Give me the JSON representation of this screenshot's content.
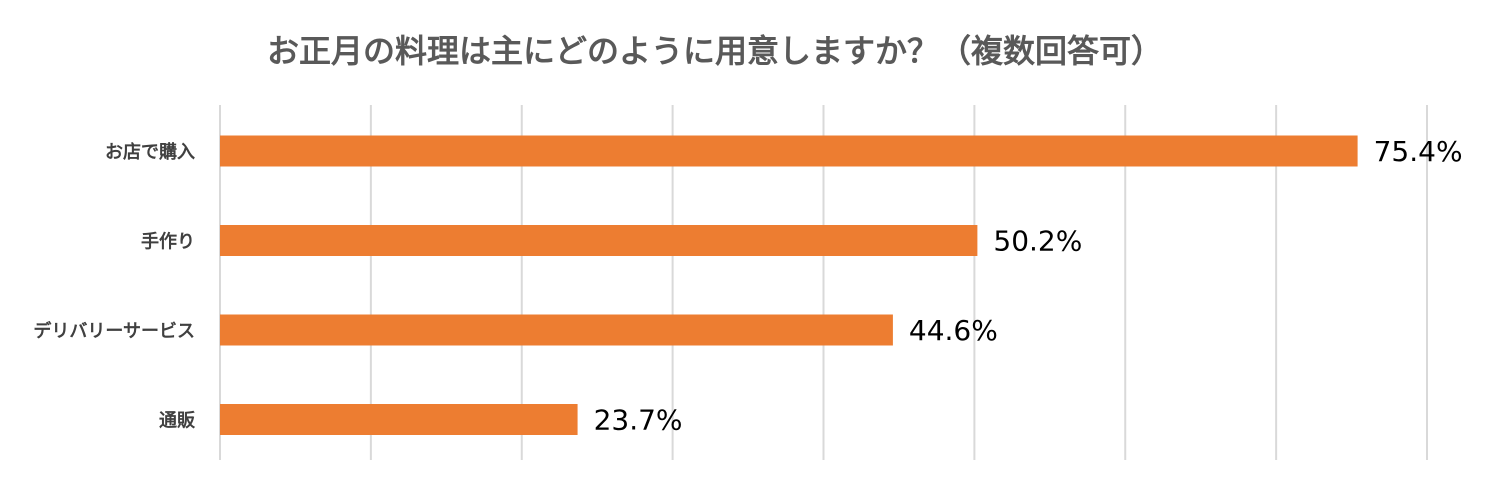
{
  "chart_data": {
    "type": "bar",
    "orientation": "horizontal",
    "title": "お正月の料理は主にどのように用意しますか？（複数回答可）",
    "categories": [
      "お店で購入",
      "手作り",
      "デリバリーサービス",
      "通販"
    ],
    "values": [
      75.4,
      50.2,
      44.6,
      23.7
    ],
    "value_labels": [
      "75.4%",
      "50.2%",
      "44.6%",
      "23.7%"
    ],
    "xlim": [
      0,
      80
    ],
    "x_gridlines": [
      0,
      10,
      20,
      30,
      40,
      50,
      60,
      70,
      80
    ],
    "grid": true,
    "legend": "none",
    "bar_color": "#ED7D31",
    "gridline_color": "#D9D9D9"
  }
}
